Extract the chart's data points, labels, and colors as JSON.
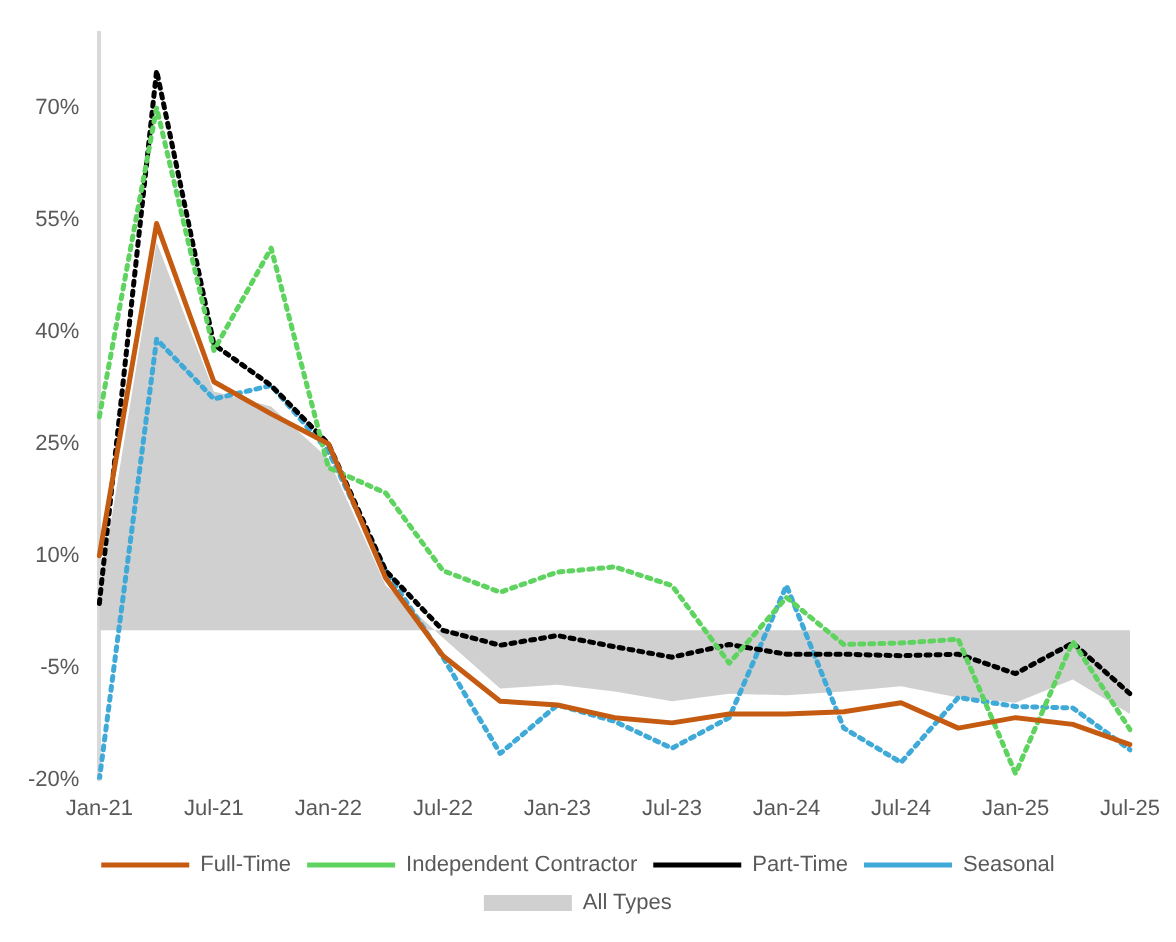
{
  "chart_data": {
    "type": "line",
    "categories": [
      "Jan-21",
      null,
      "Jul-21",
      null,
      "Jan-22",
      null,
      "Jul-22",
      null,
      "Jan-23",
      null,
      "Jul-23",
      null,
      "Jan-24",
      null,
      "Jul-24",
      null,
      "Jan-25",
      null,
      "Jul-25"
    ],
    "series": [
      {
        "name": "All Types",
        "type": "area",
        "color": "#d0d0d0",
        "values": [
          5,
          52,
          32,
          30,
          23,
          6,
          -1,
          -7.8,
          -7.3,
          -8.2,
          -9.5,
          -8.5,
          -8.7,
          -8.2,
          -7.5,
          -9,
          -9.7,
          -6.6,
          -11.2
        ]
      },
      {
        "name": "Full-Time",
        "color": "#c55a11",
        "line_style": "solid",
        "values": [
          10,
          54.5,
          33.3,
          29,
          25,
          7,
          -3.4,
          -9.5,
          -10,
          -11.7,
          -12.4,
          -11.2,
          -11.2,
          -10.9,
          -9.7,
          -13.1,
          -11.7,
          -12.6,
          -15.3
        ]
      },
      {
        "name": "Independent Contractor",
        "color": "#5fd35f",
        "line_style": "dotted",
        "values": [
          28.6,
          70,
          37.5,
          51.2,
          21.8,
          18.4,
          8,
          5.1,
          7.8,
          8.5,
          6,
          -4.4,
          4.4,
          -1.9,
          -1.7,
          -1.2,
          -19.2,
          -1.5,
          -13.3
        ]
      },
      {
        "name": "Part-Time",
        "color": "#000000",
        "line_style": "dotted",
        "values": [
          3.6,
          75,
          38.3,
          32.8,
          25,
          8,
          0,
          -2,
          -0.7,
          -2.2,
          -3.6,
          -1.9,
          -3.2,
          -3.2,
          -3.4,
          -3.2,
          -5.8,
          -1.7,
          -8.5
        ]
      },
      {
        "name": "Seasonal",
        "color": "#3fa9d8",
        "line_style": "dotted",
        "values": [
          -20,
          39,
          31,
          32.8,
          24,
          8,
          -3.6,
          -16.5,
          -10,
          -12.2,
          -15.8,
          -11.7,
          6,
          -13.1,
          -17.7,
          -9,
          -10.2,
          -10.4,
          -16
        ]
      }
    ],
    "ylim": [
      -20,
      80
    ],
    "yticks": [
      {
        "value": -20,
        "label": "-20%"
      },
      {
        "value": -5,
        "label": "-5%"
      },
      {
        "value": 10,
        "label": "10%"
      },
      {
        "value": 25,
        "label": "25%"
      },
      {
        "value": 40,
        "label": "40%"
      },
      {
        "value": 55,
        "label": "55%"
      },
      {
        "value": 70,
        "label": "70%"
      }
    ],
    "grid": false,
    "legend": "bottom",
    "marker": "none"
  }
}
